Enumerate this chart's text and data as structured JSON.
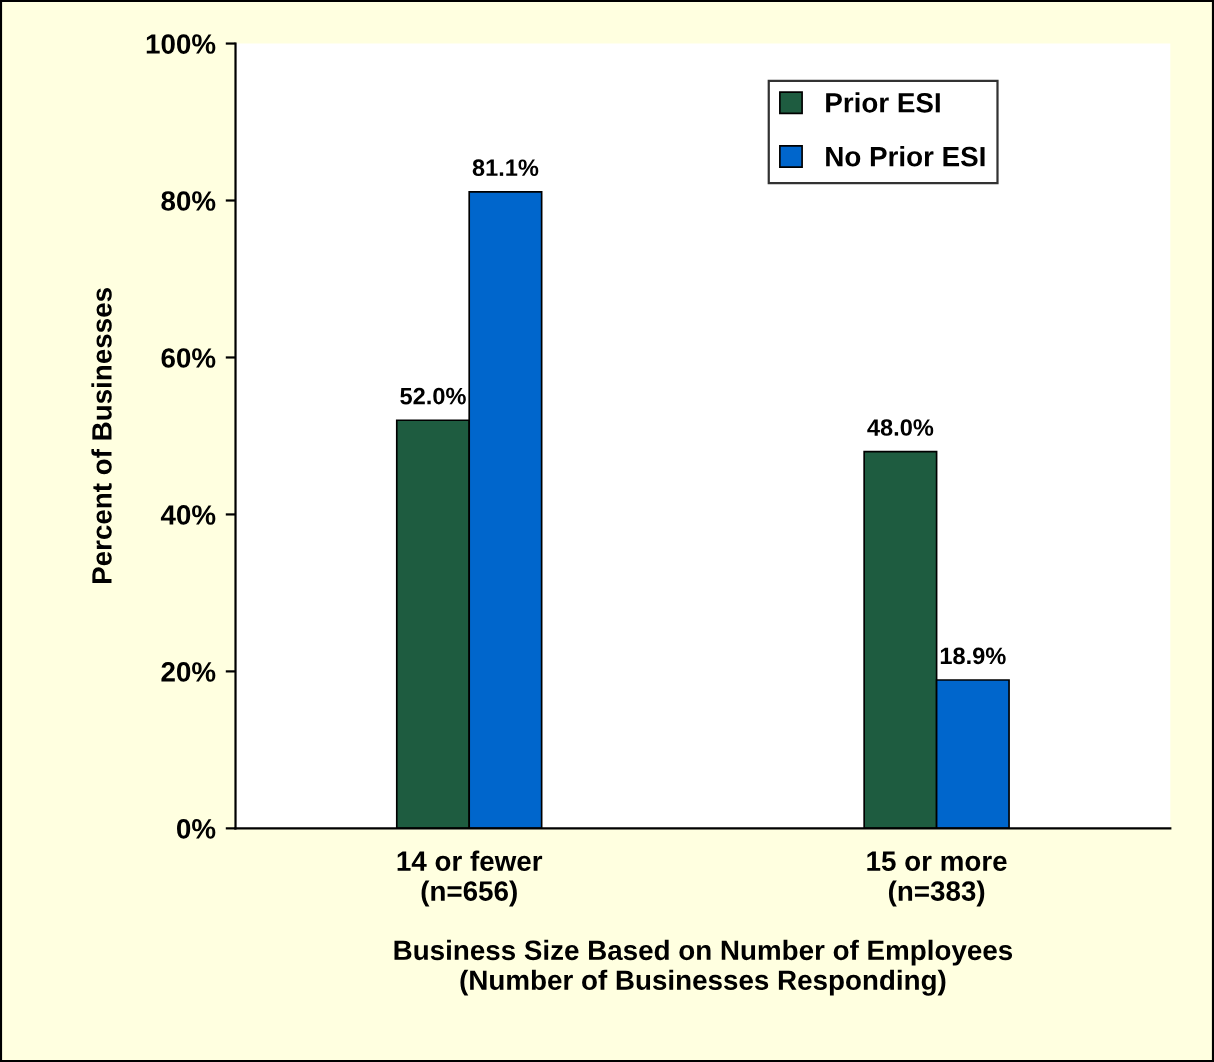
{
  "chart_data": {
    "type": "bar",
    "xlabel": "Business Size Based on Number of Employees\n(Number of Businesses Responding)",
    "ylabel": "Percent of Businesses",
    "categories": [
      "14 or fewer\n(n=656)",
      "15 or more\n(n=383)"
    ],
    "series": [
      {
        "name": "Prior ESI",
        "color": "#1e5c40",
        "values": [
          52.0,
          48.0
        ],
        "value_labels": [
          "52.0%",
          "48.0%"
        ]
      },
      {
        "name": "No Prior ESI",
        "color": "#0066cc",
        "values": [
          81.1,
          18.9
        ],
        "value_labels": [
          "81.1%",
          "18.9%"
        ]
      }
    ],
    "ylim": [
      0,
      100
    ],
    "yticks": [
      {
        "value": 0,
        "label": "0%"
      },
      {
        "value": 20,
        "label": "20%"
      },
      {
        "value": 40,
        "label": "40%"
      },
      {
        "value": 60,
        "label": "60%"
      },
      {
        "value": 80,
        "label": "80%"
      },
      {
        "value": 100,
        "label": "100%"
      }
    ],
    "grid": false,
    "legend": "top right"
  }
}
